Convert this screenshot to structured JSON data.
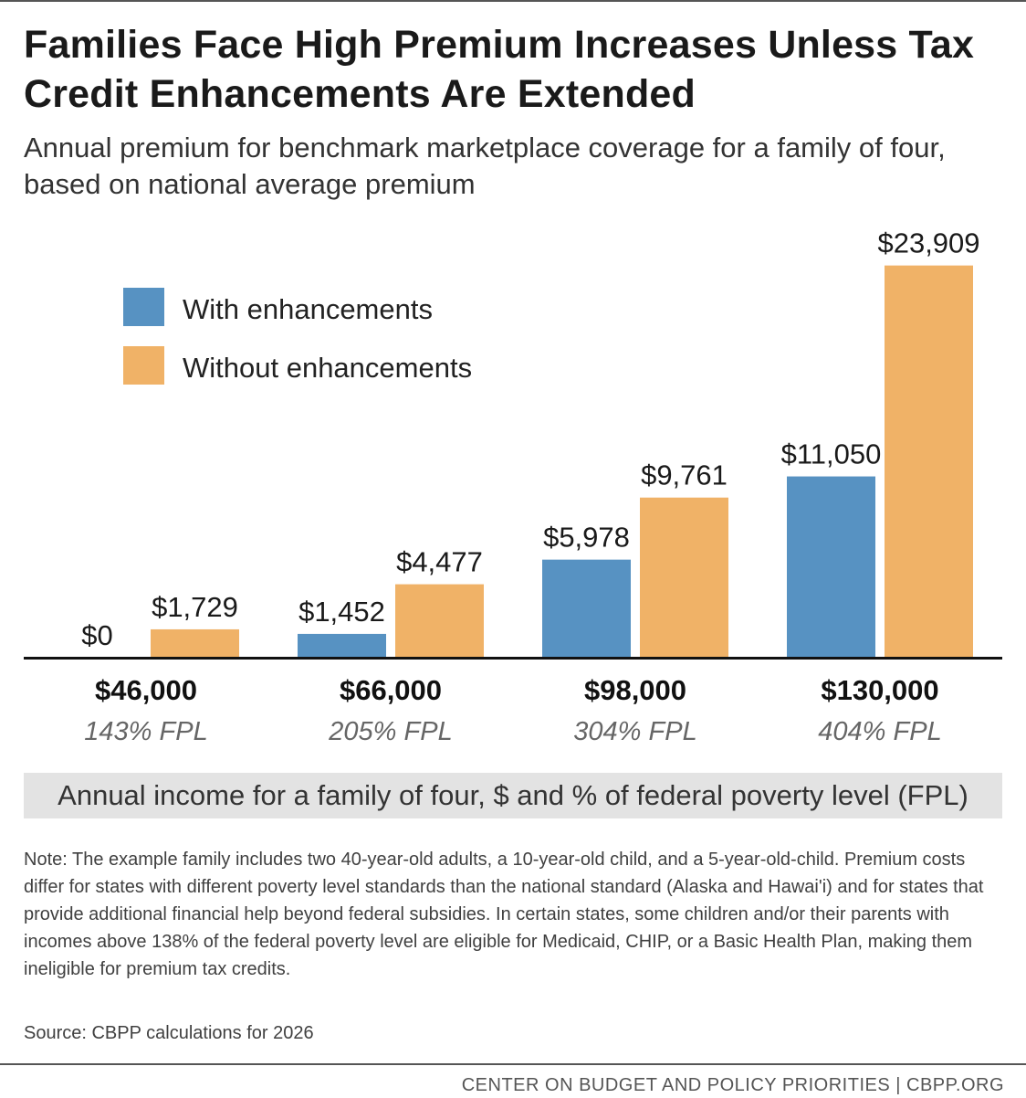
{
  "header": {
    "title": "Families Face High Premium Increases Unless Tax Credit Enhancements Are Extended",
    "subtitle": "Annual premium for benchmark marketplace coverage for a family of four, based on national average premium"
  },
  "chart_data": {
    "type": "bar",
    "categories": [
      "$46,000",
      "$66,000",
      "$98,000",
      "$130,000"
    ],
    "category_sublabels": [
      "143% FPL",
      "205% FPL",
      "304% FPL",
      "404% FPL"
    ],
    "series": [
      {
        "name": "With enhancements",
        "color": "#5792c2",
        "values": [
          0,
          1452,
          5978,
          11050
        ],
        "labels": [
          "$0",
          "$1,452",
          "$5,978",
          "$11,050"
        ]
      },
      {
        "name": "Without enhancements",
        "color": "#f0b267",
        "values": [
          1729,
          4477,
          9761,
          23909
        ],
        "labels": [
          "$1,729",
          "$4,477",
          "$9,761",
          "$23,909"
        ]
      }
    ],
    "xlabel": "Annual income for a family of four, $ and % of federal poverty level (FPL)",
    "ylabel": "",
    "ylim": [
      0,
      24000
    ],
    "grid": false,
    "legend_position": "top-left"
  },
  "notes": {
    "note": "Note: The example family includes two 40-year-old adults, a 10-year-old child, and a 5-year-old-child. Premium costs differ for states with different poverty level standards than the national standard (Alaska and Hawai'i) and for states that provide additional financial help beyond federal subsidies. In certain states, some children and/or their parents with incomes above 138% of the federal poverty level are eligible for Medicaid, CHIP, or a Basic Health Plan, making them ineligible for premium tax credits.",
    "source": "Source: CBPP calculations for 2026"
  },
  "footer": {
    "org": "CENTER ON BUDGET AND POLICY PRIORITIES | CBPP.ORG"
  }
}
